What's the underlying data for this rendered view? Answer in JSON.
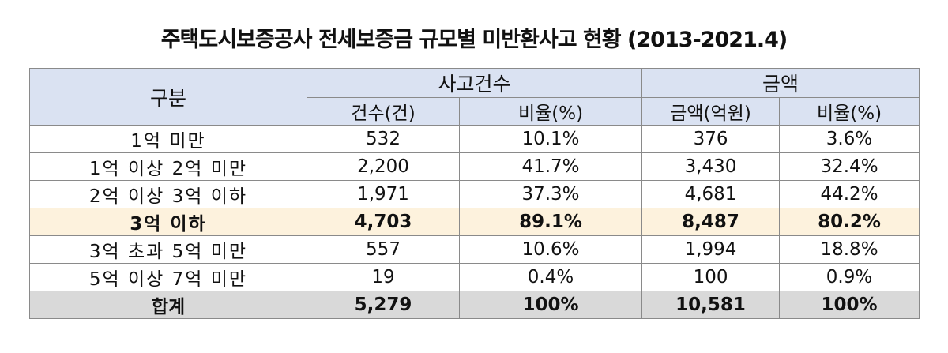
{
  "title": "주택도시보증공사 전세보증금 규모별 미반환사고 현황 (2013-2021.4)",
  "header": {
    "category": "구분",
    "group_accidents": "사고건수",
    "group_amount": "금액",
    "col_count": "건수(건)",
    "col_count_ratio": "비율(%)",
    "col_amount": "금액(억원)",
    "col_amount_ratio": "비율(%)"
  },
  "rows": [
    {
      "label": "1억 미만",
      "count": "532",
      "count_ratio": "10.1%",
      "amount": "376",
      "amount_ratio": "3.6%"
    },
    {
      "label": "1억 이상 2억 미만",
      "count": "2,200",
      "count_ratio": "41.7%",
      "amount": "3,430",
      "amount_ratio": "32.4%"
    },
    {
      "label": "2억 이상 3억 이하",
      "count": "1,971",
      "count_ratio": "37.3%",
      "amount": "4,681",
      "amount_ratio": "44.2%"
    },
    {
      "label": "3억 이하",
      "count": "4,703",
      "count_ratio": "89.1%",
      "amount": "8,487",
      "amount_ratio": "80.2%"
    },
    {
      "label": "3억 초과 5억 미만",
      "count": "557",
      "count_ratio": "10.6%",
      "amount": "1,994",
      "amount_ratio": "18.8%"
    },
    {
      "label": "5억 이상 7억 미만",
      "count": "19",
      "count_ratio": "0.4%",
      "amount": "100",
      "amount_ratio": "0.9%"
    },
    {
      "label": "합계",
      "count": "5,279",
      "count_ratio": "100%",
      "amount": "10,581",
      "amount_ratio": "100%"
    }
  ],
  "colors": {
    "header_bg": "#dae2f2",
    "highlight_bg": "#fdf2dd",
    "total_bg": "#d9d9d9",
    "border": "#8a8a8a"
  }
}
